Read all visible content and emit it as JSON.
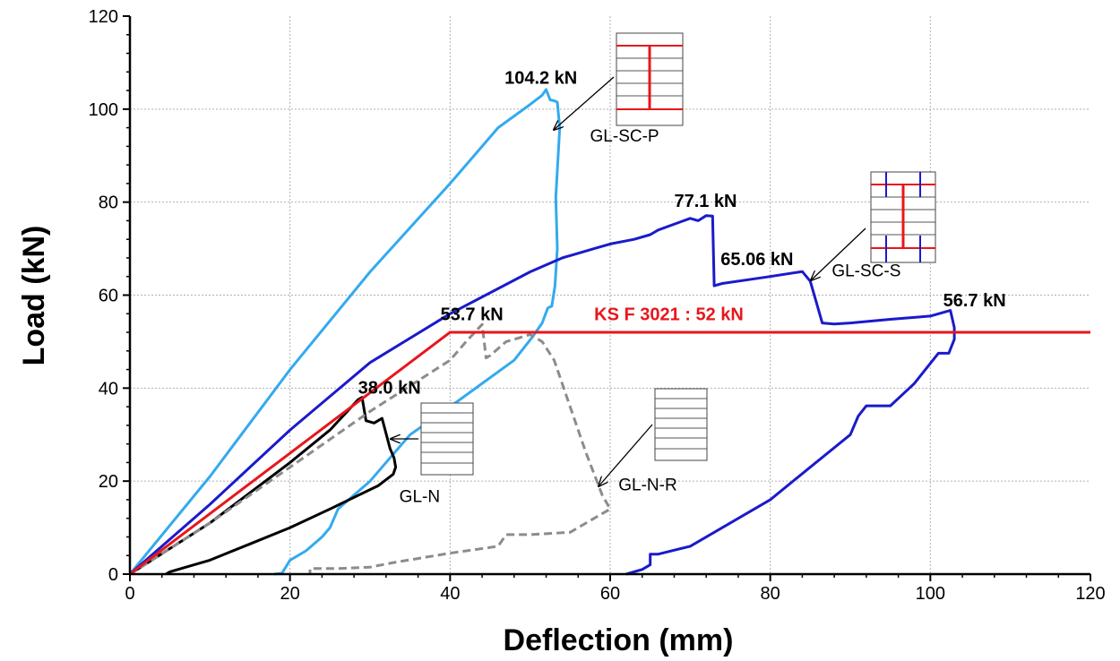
{
  "chart_data": {
    "type": "line",
    "title": "",
    "xlabel": "Deflection (mm)",
    "ylabel": "Load (kN)",
    "xlim": [
      0,
      120
    ],
    "ylim": [
      0,
      120
    ],
    "xticks": [
      0,
      20,
      40,
      60,
      80,
      100,
      120
    ],
    "yticks": [
      0,
      20,
      40,
      60,
      80,
      100,
      120
    ],
    "grid": true,
    "colors": {
      "gl_sc_p": "#33aaee",
      "gl_sc_s": "#1a1acc",
      "gl_n": "#000000",
      "gl_n_r": "#8c8c8c",
      "requirement": "#e8161b"
    },
    "series": [
      {
        "name": "GL-SC-P",
        "color": "#33aaee",
        "style": "solid",
        "x": [
          0,
          10,
          20,
          30,
          40,
          46,
          50,
          51.5,
          52,
          52.5,
          53,
          53.4,
          53.7,
          53.2,
          53.4,
          53.1,
          52.7,
          52.5,
          52.2,
          51.5,
          50.3,
          48,
          44,
          40,
          35,
          33,
          30,
          28,
          26,
          25,
          24,
          22,
          20,
          19,
          18
        ],
        "y": [
          0,
          21,
          44,
          65,
          84,
          96,
          101,
          103,
          104.2,
          102,
          101.8,
          101.5,
          96,
          81,
          70,
          62,
          57.6,
          57.5,
          57.2,
          54,
          51,
          46,
          41,
          36,
          30,
          26,
          20,
          17,
          14,
          10,
          8,
          5,
          3,
          0.2,
          0
        ]
      },
      {
        "name": "GL-SC-S",
        "color": "#1a1acc",
        "style": "solid",
        "x": [
          0,
          10,
          20,
          30,
          40,
          50,
          54,
          58,
          60,
          63,
          65,
          66,
          70,
          71,
          72,
          72.8,
          73,
          74,
          78,
          80,
          84,
          85,
          85.5,
          86.5,
          88,
          90,
          95,
          100,
          102.5,
          103,
          103,
          102.3,
          101,
          98,
          95,
          92,
          91,
          90,
          85,
          80,
          75,
          70,
          66,
          65,
          65,
          64,
          62
        ],
        "y": [
          0,
          15,
          31,
          45.5,
          56,
          65,
          68,
          70,
          71,
          72,
          73,
          74,
          76.5,
          76,
          77.1,
          77,
          62,
          62.5,
          63.5,
          64,
          65.06,
          63,
          60,
          54,
          53.8,
          54,
          54.8,
          55.5,
          56.7,
          53,
          50.5,
          47.5,
          47.5,
          41,
          36.2,
          36.2,
          34,
          30,
          23,
          16,
          11,
          6,
          4.3,
          4.3,
          2,
          1,
          0
        ]
      },
      {
        "name": "GL-N",
        "color": "#000000",
        "style": "solid",
        "x": [
          0,
          10,
          20,
          25,
          28.5,
          29,
          29.5,
          30.5,
          31.5,
          32.5,
          33,
          33.2,
          32.9,
          31,
          28,
          25,
          20,
          15,
          10,
          5,
          4.5
        ],
        "y": [
          0,
          11,
          24,
          31,
          37.5,
          38,
          33,
          32.5,
          33.5,
          27,
          25,
          23,
          21.5,
          19,
          16.5,
          14,
          10,
          6.5,
          3,
          0.5,
          0
        ]
      },
      {
        "name": "GL-N-R",
        "color": "#8c8c8c",
        "style": "dashed",
        "x": [
          0,
          10,
          20,
          30,
          40,
          42,
          44,
          44.5,
          45,
          47,
          50,
          51.5,
          53,
          55,
          57,
          59,
          60,
          58,
          55,
          50,
          47,
          46,
          40,
          33,
          30,
          26,
          22.5,
          22.5
        ],
        "y": [
          0,
          11,
          23,
          35,
          46,
          50,
          53.7,
          46.5,
          47,
          50,
          51.5,
          50,
          46,
          36,
          26,
          17,
          14,
          12,
          9,
          8.5,
          8.5,
          6,
          4.5,
          2.5,
          1.5,
          1.2,
          1.2,
          0
        ]
      },
      {
        "name": "KS F 3021 : 52 kN",
        "color": "#e8161b",
        "style": "solid",
        "x": [
          0,
          40,
          120
        ],
        "y": [
          0,
          52,
          52
        ]
      }
    ],
    "annotations": [
      {
        "text": "104.2 kN",
        "x": 46.8,
        "y": 105.5
      },
      {
        "text": "77.1 kN",
        "x": 68.0,
        "y": 79.0
      },
      {
        "text": "65.06 kN",
        "x": 73.8,
        "y": 66.5
      },
      {
        "text": "56.7 kN",
        "x": 101.6,
        "y": 57.6
      },
      {
        "text": "53.7 kN",
        "x": 38.8,
        "y": 54.6
      },
      {
        "text": "38.0 kN",
        "x": 28.5,
        "y": 38.8
      },
      {
        "text": "KS F 3021 : 52 kN",
        "x": 58.0,
        "y": 54.6
      }
    ],
    "specimen_labels": [
      {
        "text": "GL-SC-P",
        "x": 61.8,
        "y": 93.0
      },
      {
        "text": "GL-SC-S",
        "x": 92.0,
        "y": 64.0
      },
      {
        "text": "GL-N",
        "x": 36.2,
        "y": 15.5
      },
      {
        "text": "GL-N-R",
        "x": 64.7,
        "y": 18.0
      }
    ]
  }
}
